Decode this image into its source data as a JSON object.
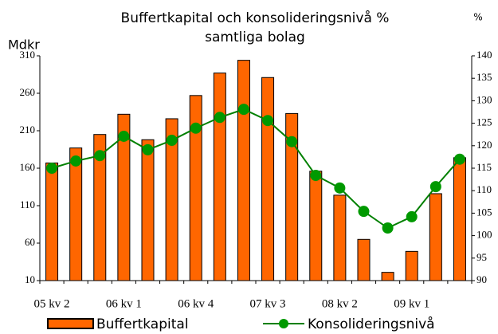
{
  "chart_data": {
    "type": "bar_line",
    "title": [
      "Buffertkapital och konsolideringsnivå %",
      "samtliga bolag"
    ],
    "y_label": "Mdkr",
    "y2_label": "%",
    "categories": [
      "05 kv 2",
      null,
      null,
      "06 kv 1",
      null,
      null,
      "06 kv 4",
      null,
      null,
      "07 kv 3",
      null,
      null,
      "08 kv 2",
      null,
      null,
      "09 kv 1",
      null,
      null
    ],
    "series": [
      {
        "name": "Buffertkapital",
        "type": "bar",
        "color": "#ff6600",
        "values": [
          167,
          187,
          205,
          232,
          198,
          226,
          257,
          287,
          304,
          281,
          233,
          156,
          124,
          65,
          21,
          49,
          126,
          174
        ]
      },
      {
        "name": "Konsolideringsnivå",
        "type": "line",
        "axis": "y2",
        "color": "#009900",
        "values": [
          115,
          116.6,
          117.8,
          122.1,
          119.1,
          121.2,
          123.9,
          126.3,
          128.1,
          125.6,
          120.9,
          113.4,
          110.6,
          105.4,
          101.7,
          104.2,
          110.9,
          117
        ]
      }
    ],
    "ylim": [
      10,
      310
    ],
    "yticks": [
      10,
      60,
      110,
      160,
      210,
      260,
      310
    ],
    "y2lim": [
      90,
      140
    ],
    "y2ticks": [
      90,
      95,
      100,
      105,
      110,
      115,
      120,
      125,
      130,
      135,
      140
    ],
    "grid": false,
    "legend": "bottom"
  }
}
